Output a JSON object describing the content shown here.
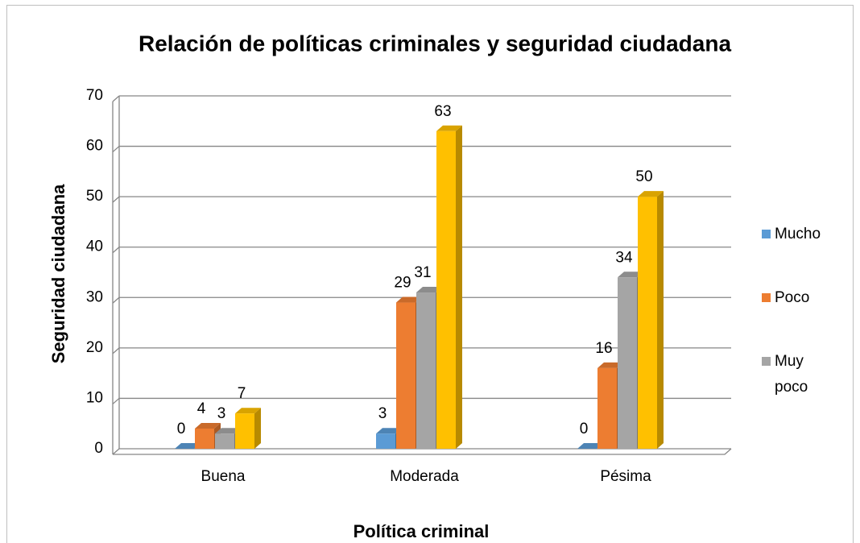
{
  "chart_data": {
    "type": "bar",
    "title": "Relación de políticas criminales y seguridad ciudadana",
    "x_label": "Política criminal",
    "y_label": "Seguridad ciudadana",
    "categories": [
      "Buena",
      "Moderada",
      "Pésima"
    ],
    "series": [
      {
        "name": "Mucho",
        "color": "#5b9bd5",
        "values": [
          0,
          3,
          0
        ]
      },
      {
        "name": "Poco",
        "color": "#ed7d31",
        "values": [
          4,
          29,
          16
        ]
      },
      {
        "name": "Muy poco",
        "color": "#a5a5a5",
        "values": [
          3,
          31,
          34
        ]
      },
      {
        "color": "#ffc000",
        "values": [
          7,
          63,
          50
        ]
      }
    ],
    "ylim": [
      0,
      70
    ],
    "yticks": [
      0,
      10,
      20,
      30,
      40,
      50,
      60,
      70
    ],
    "grid": true,
    "legend": "right"
  }
}
